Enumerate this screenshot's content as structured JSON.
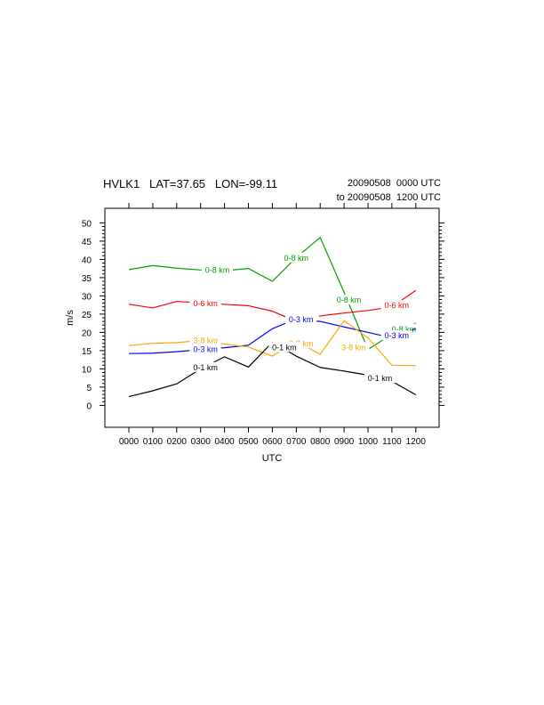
{
  "header": {
    "station": "HVLK1   LAT=37.65   LON=-99.11",
    "time_start": "20090508  0000 UTC",
    "time_end": "to 20090508  1200 UTC"
  },
  "chart_data": {
    "type": "line",
    "xlabel": "UTC",
    "ylabel": "m/s",
    "categories": [
      "0000",
      "0100",
      "0200",
      "0300",
      "0400",
      "0500",
      "0600",
      "0700",
      "0800",
      "0900",
      "1000",
      "1100",
      "1200"
    ],
    "ylim": [
      -6,
      54
    ],
    "yticks": [
      0,
      5,
      10,
      15,
      20,
      25,
      30,
      35,
      40,
      45,
      50
    ],
    "grid": false,
    "series": [
      {
        "name": "0-8 km",
        "color": "#00a000",
        "values": [
          37.2,
          38.3,
          37.6,
          37.1,
          36.9,
          37.5,
          34.0,
          40.5,
          46.0,
          31.0,
          15.3,
          19.5,
          22.5
        ],
        "labels": [
          {
            "x": 3.7,
            "y": 37.2
          },
          {
            "x": 7.0,
            "y": 40.5
          },
          {
            "x": 9.2,
            "y": 29.0
          },
          {
            "x": 11.5,
            "y": 21.0
          }
        ]
      },
      {
        "name": "0-6 km",
        "color": "#ff0000",
        "values": [
          27.7,
          26.7,
          28.5,
          28.1,
          27.7,
          27.3,
          25.8,
          23.0,
          24.5,
          25.3,
          26.0,
          27.0,
          31.5
        ],
        "labels": [
          {
            "x": 3.2,
            "y": 28.0
          },
          {
            "x": 7.3,
            "y": 23.8
          },
          {
            "x": 11.2,
            "y": 27.5
          }
        ]
      },
      {
        "name": "0-3 km",
        "color": "#0000ff",
        "values": [
          14.2,
          14.3,
          14.7,
          15.3,
          15.8,
          16.5,
          21.0,
          23.7,
          23.0,
          21.5,
          20.0,
          18.5,
          21.0
        ],
        "labels": [
          {
            "x": 3.2,
            "y": 15.5
          },
          {
            "x": 7.2,
            "y": 23.6
          },
          {
            "x": 11.2,
            "y": 19.2
          }
        ]
      },
      {
        "name": "3-8 km",
        "color": "#ffa500",
        "values": [
          16.4,
          17.0,
          17.2,
          17.8,
          16.8,
          16.0,
          13.5,
          17.5,
          14.0,
          23.2,
          18.5,
          11.0,
          10.9
        ],
        "labels": [
          {
            "x": 3.2,
            "y": 17.9
          },
          {
            "x": 7.2,
            "y": 17.0
          },
          {
            "x": 9.4,
            "y": 16.0
          }
        ]
      },
      {
        "name": "0-1 km",
        "color": "#000000",
        "values": [
          2.4,
          4.0,
          5.9,
          10.0,
          13.3,
          10.5,
          17.3,
          13.5,
          10.4,
          9.4,
          8.3,
          6.6,
          2.9
        ],
        "labels": [
          {
            "x": 3.2,
            "y": 10.5
          },
          {
            "x": 6.5,
            "y": 16.0
          },
          {
            "x": 10.5,
            "y": 7.5
          }
        ]
      }
    ]
  }
}
